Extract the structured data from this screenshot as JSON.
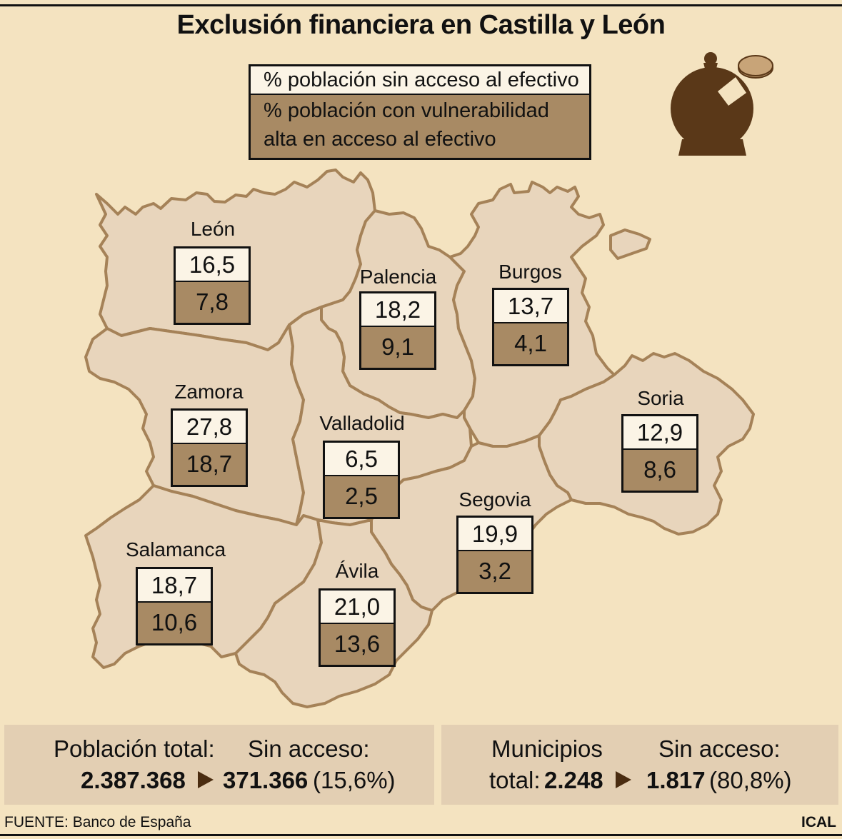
{
  "title": "Exclusión financiera en Castilla y León",
  "legend": {
    "without_access": "% población sin acceso al efectivo",
    "vulnerable_line1": "% población con vulnerabilidad",
    "vulnerable_line2": "alta en acceso al efectivo"
  },
  "colors": {
    "background": "#f4e3c0",
    "map_fill": "#e8d5bc",
    "map_border": "#a58258",
    "vulnerable_fill": "#a88a64",
    "without_access_fill": "#fbf4e6",
    "icon": "#5a3818"
  },
  "icon": "piggy-bank-coin-icon",
  "provinces": [
    {
      "name": "León",
      "without_access": "16,5",
      "vulnerable": "7,8"
    },
    {
      "name": "Palencia",
      "without_access": "18,2",
      "vulnerable": "9,1"
    },
    {
      "name": "Burgos",
      "without_access": "13,7",
      "vulnerable": "4,1"
    },
    {
      "name": "Zamora",
      "without_access": "27,8",
      "vulnerable": "18,7"
    },
    {
      "name": "Valladolid",
      "without_access": "6,5",
      "vulnerable": "2,5"
    },
    {
      "name": "Soria",
      "without_access": "12,9",
      "vulnerable": "8,6"
    },
    {
      "name": "Segovia",
      "without_access": "19,9",
      "vulnerable": "3,2"
    },
    {
      "name": "Salamanca",
      "without_access": "18,7",
      "vulnerable": "10,6"
    },
    {
      "name": "Ávila",
      "without_access": "21,0",
      "vulnerable": "13,6"
    }
  ],
  "population": {
    "total_label": "Población total:",
    "total_value": "2.387.368",
    "without_label": "Sin acceso:",
    "without_value": "371.366",
    "without_pct": "(15,6%)"
  },
  "municipalities": {
    "total_label_line1": "Municipios",
    "total_label_line2": "total:",
    "total_value": "2.248",
    "without_label": "Sin acceso:",
    "without_value": "1.817",
    "without_pct": "(80,8%)"
  },
  "source_label": "FUENTE:",
  "source_value": "Banco de España",
  "credit": "ICAL"
}
